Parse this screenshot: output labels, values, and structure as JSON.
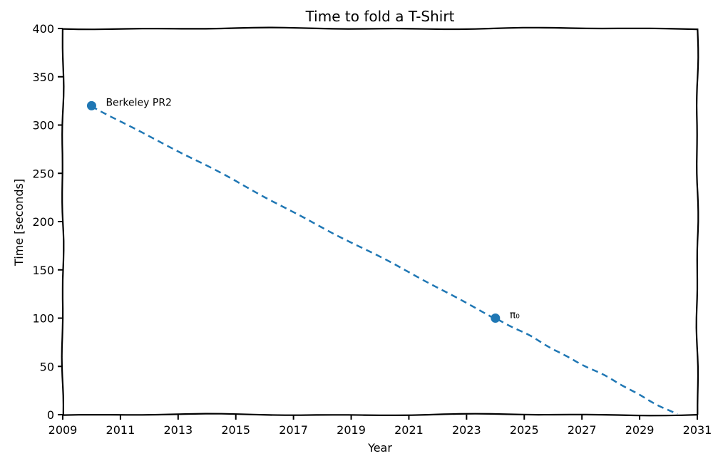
{
  "chart_data": {
    "type": "line",
    "title": "Time to fold a T-Shirt",
    "xlabel": "Year",
    "ylabel": "Time [seconds]",
    "xlim": [
      2009,
      2031
    ],
    "ylim": [
      0,
      400
    ],
    "x_ticks": [
      2009,
      2011,
      2013,
      2015,
      2017,
      2019,
      2021,
      2023,
      2025,
      2027,
      2029,
      2031
    ],
    "y_ticks": [
      0,
      50,
      100,
      150,
      200,
      250,
      300,
      350,
      400
    ],
    "grid": false,
    "style": "xkcd",
    "series": [
      {
        "x": [
          2010,
          2024,
          2030.3
        ],
        "y": [
          320,
          100,
          0
        ],
        "line_style": "dashed",
        "color": "#1f77b4"
      }
    ],
    "points": [
      {
        "x": 2010,
        "y": 320,
        "label": "Berkeley PR2"
      },
      {
        "x": 2024,
        "y": 100,
        "label": "π₀"
      }
    ]
  }
}
